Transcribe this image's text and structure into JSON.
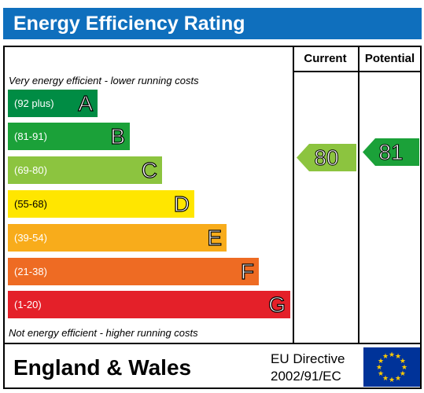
{
  "title": "Energy Efficiency Rating",
  "columns": {
    "current": "Current",
    "potential": "Potential"
  },
  "notes": {
    "top": "Very energy efficient - lower running costs",
    "bottom": "Not energy efficient - higher running costs"
  },
  "bands": [
    {
      "range": "(92 plus)",
      "letter": "A",
      "color": "#008c44"
    },
    {
      "range": "(81-91)",
      "letter": "B",
      "color": "#1ba139"
    },
    {
      "range": "(69-80)",
      "letter": "C",
      "color": "#8cc43f"
    },
    {
      "range": "(55-68)",
      "letter": "D",
      "color": "#ffe600"
    },
    {
      "range": "(39-54)",
      "letter": "E",
      "color": "#f8ac1b"
    },
    {
      "range": "(21-38)",
      "letter": "F",
      "color": "#ee6b23"
    },
    {
      "range": "(1-20)",
      "letter": "G",
      "color": "#e42029"
    }
  ],
  "current": {
    "value": "80",
    "band": "C",
    "color": "#8cc43f"
  },
  "potential": {
    "value": "81",
    "band": "B",
    "color": "#1ba139"
  },
  "footer": {
    "region": "England & Wales",
    "directive_line1": "EU Directive",
    "directive_line2": "2002/91/EC"
  },
  "icons": {
    "flag": "eu-flag-icon"
  }
}
